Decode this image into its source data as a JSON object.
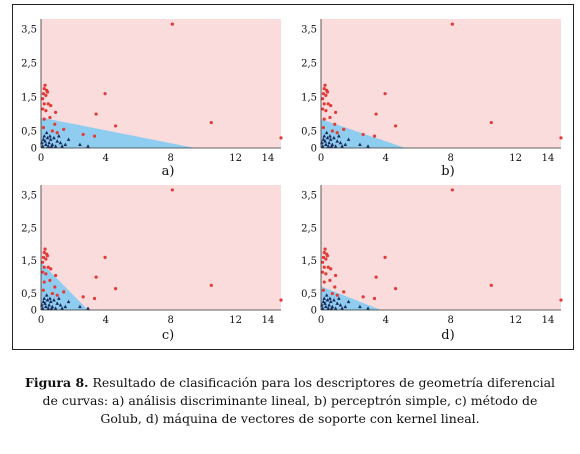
{
  "caption": {
    "label": "Figura 8.",
    "text": "Resultado de clasificación para los descriptores de geometría diferencial de curvas: a) análisis discriminante lineal, b) perceptrón simple, c) método de Golub, d) máquina de vectores de soporte con kernel lineal."
  },
  "colors": {
    "class_red_region": "#fbdcdc",
    "class_blue_region": "#8ecdf0",
    "red_points": "#e53935",
    "blue_points": "#1a2a5a"
  },
  "chart_data": [
    {
      "type": "scatter",
      "panel_label": "a)",
      "xlim": [
        0,
        14.8
      ],
      "ylim": [
        0,
        3.8
      ],
      "xticks": [
        0,
        4,
        8,
        12,
        14
      ],
      "yticks": [
        0,
        0.5,
        1.5,
        2.5,
        3.5
      ],
      "ytick_labels": [
        "0",
        "0,5",
        "1,5",
        "2,5",
        "3,5"
      ],
      "blue_region": [
        [
          0,
          0
        ],
        [
          0,
          0.9
        ],
        [
          9.5,
          0
        ]
      ]
    },
    {
      "type": "scatter",
      "panel_label": "b)",
      "xlim": [
        0,
        14.8
      ],
      "ylim": [
        0,
        3.8
      ],
      "xticks": [
        0,
        4,
        8,
        12,
        14
      ],
      "yticks": [
        0,
        0.5,
        1.5,
        2.5,
        3.5
      ],
      "ytick_labels": [
        "0",
        "0,5",
        "1,5",
        "2,5",
        "3,5"
      ],
      "blue_region": [
        [
          0,
          0
        ],
        [
          0,
          0.85
        ],
        [
          5.2,
          0
        ]
      ]
    },
    {
      "type": "scatter",
      "panel_label": "c)",
      "xlim": [
        0,
        14.8
      ],
      "ylim": [
        0,
        3.8
      ],
      "xticks": [
        0,
        4,
        8,
        12,
        14
      ],
      "yticks": [
        0,
        0.5,
        1.5,
        2.5,
        3.5
      ],
      "ytick_labels": [
        "0",
        "0,5",
        "1,5",
        "2,5",
        "3,5"
      ],
      "blue_region": [
        [
          0,
          0
        ],
        [
          0,
          1.45
        ],
        [
          2.9,
          0
        ]
      ]
    },
    {
      "type": "scatter",
      "panel_label": "d)",
      "xlim": [
        0,
        14.8
      ],
      "ylim": [
        0,
        3.8
      ],
      "xticks": [
        0,
        4,
        8,
        12,
        14
      ],
      "yticks": [
        0,
        0.5,
        1.5,
        2.5,
        3.5
      ],
      "ytick_labels": [
        "0",
        "0,5",
        "1,5",
        "2,5",
        "3,5"
      ],
      "blue_region": [
        [
          0,
          0
        ],
        [
          0,
          0.72
        ],
        [
          3.7,
          0
        ]
      ]
    }
  ],
  "points": {
    "red": [
      [
        8.1,
        3.65
      ],
      [
        0.25,
        1.85
      ],
      [
        0.2,
        1.75
      ],
      [
        0.35,
        1.7
      ],
      [
        0.15,
        1.6
      ],
      [
        0.4,
        1.65
      ],
      [
        0.3,
        1.55
      ],
      [
        0.1,
        1.45
      ],
      [
        0.2,
        1.3
      ],
      [
        0.45,
        1.3
      ],
      [
        0.6,
        1.25
      ],
      [
        0.1,
        1.15
      ],
      [
        0.3,
        1.1
      ],
      [
        0.9,
        1.05
      ],
      [
        3.95,
        1.6
      ],
      [
        3.4,
        1.0
      ],
      [
        0.55,
        0.9
      ],
      [
        0.2,
        0.85
      ],
      [
        0.85,
        0.7
      ],
      [
        1.4,
        0.55
      ],
      [
        2.6,
        0.4
      ],
      [
        3.3,
        0.35
      ],
      [
        4.6,
        0.65
      ],
      [
        10.5,
        0.75
      ],
      [
        14.8,
        0.3
      ],
      [
        0.15,
        0.6
      ],
      [
        1.0,
        0.45
      ],
      [
        0.7,
        0.5
      ]
    ],
    "blue": [
      [
        0.2,
        0.35
      ],
      [
        0.4,
        0.3
      ],
      [
        0.6,
        0.25
      ],
      [
        0.8,
        0.3
      ],
      [
        1.0,
        0.2
      ],
      [
        0.5,
        0.15
      ],
      [
        0.3,
        0.1
      ],
      [
        0.1,
        0.05
      ],
      [
        0.7,
        0.1
      ],
      [
        1.2,
        0.15
      ],
      [
        1.5,
        0.1
      ],
      [
        0.9,
        0.05
      ],
      [
        0.25,
        0.2
      ],
      [
        0.45,
        0.05
      ],
      [
        1.7,
        0.25
      ],
      [
        2.4,
        0.1
      ],
      [
        2.9,
        0.05
      ],
      [
        0.15,
        0.25
      ],
      [
        0.55,
        0.35
      ],
      [
        1.1,
        0.35
      ],
      [
        0.35,
        0.45
      ],
      [
        0.05,
        0.15
      ],
      [
        0.65,
        0.05
      ],
      [
        1.3,
        0.05
      ]
    ]
  }
}
